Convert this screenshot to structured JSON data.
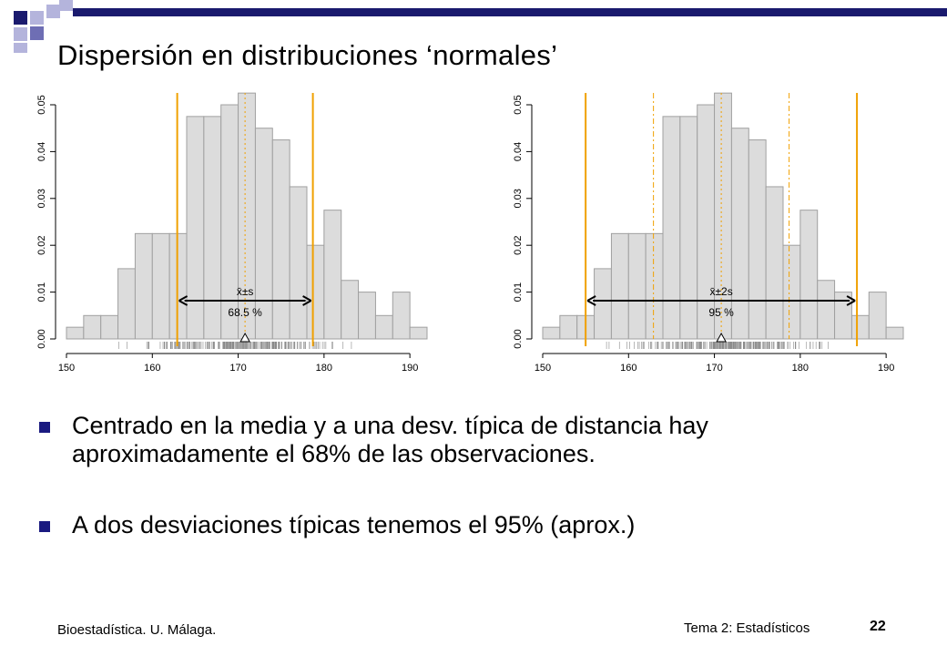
{
  "slide": {
    "title": "Dispersión en distribuciones ‘normales’",
    "bullets": [
      "Centrado en la media y a una desv. típica de distancia hay aproximadamente el 68% de las observaciones.",
      "A dos desviaciones típicas tenemos el 95% (aprox.)"
    ],
    "footer_left": "Bioestadística. U. Málaga.",
    "footer_topic": "Tema 2: Estadísticos",
    "page_number": "22",
    "colors": {
      "bullet": "#1a1a80",
      "bar_fill": "#dcdcdc",
      "bar_stroke": "#a0a0a0",
      "limit_line": "#f0a000",
      "axis": "#000000"
    },
    "logo_squares": [
      "#1a1a6e",
      "#6e6eb4",
      "#b4b4dc"
    ]
  },
  "chart_data": [
    {
      "type": "bar",
      "bin_edges": [
        150,
        152,
        154,
        156,
        158,
        160,
        162,
        164,
        166,
        168,
        170,
        172,
        174,
        176,
        178,
        180,
        182,
        184,
        186,
        188,
        190,
        192
      ],
      "values": [
        0.0025,
        0.005,
        0.005,
        0.015,
        0.0225,
        0.0225,
        0.0225,
        0.0475,
        0.0475,
        0.05,
        0.0525,
        0.045,
        0.0425,
        0.0325,
        0.02,
        0.0275,
        0.0125,
        0.01,
        0.005,
        0.01,
        0.0025
      ],
      "xlim": [
        150,
        192
      ],
      "ylim": [
        0,
        0.05
      ],
      "x_ticks": [
        "150",
        "160",
        "170",
        "180",
        "190"
      ],
      "y_ticks": [
        "0.00",
        "0.01",
        "0.02",
        "0.03",
        "0.04",
        "0.05"
      ],
      "mean": 170.8,
      "sd": 7.9,
      "solid_limits": [
        162.9,
        178.7
      ],
      "dashed_limits": [],
      "annotation_label": "x̄±s",
      "annotation_pct": "68.5 %"
    },
    {
      "type": "bar",
      "bin_edges": [
        150,
        152,
        154,
        156,
        158,
        160,
        162,
        164,
        166,
        168,
        170,
        172,
        174,
        176,
        178,
        180,
        182,
        184,
        186,
        188,
        190,
        192
      ],
      "values": [
        0.0025,
        0.005,
        0.005,
        0.015,
        0.0225,
        0.0225,
        0.0225,
        0.0475,
        0.0475,
        0.05,
        0.0525,
        0.045,
        0.0425,
        0.0325,
        0.02,
        0.0275,
        0.0125,
        0.01,
        0.005,
        0.01,
        0.0025
      ],
      "xlim": [
        150,
        192
      ],
      "ylim": [
        0,
        0.05
      ],
      "x_ticks": [
        "150",
        "160",
        "170",
        "180",
        "190"
      ],
      "y_ticks": [
        "0.00",
        "0.01",
        "0.02",
        "0.03",
        "0.04",
        "0.05"
      ],
      "mean": 170.8,
      "sd": 7.9,
      "solid_limits": [
        155.0,
        186.6
      ],
      "dashed_limits": [
        162.9,
        178.7
      ],
      "annotation_label": "x̄±2s",
      "annotation_pct": "95 %"
    }
  ]
}
